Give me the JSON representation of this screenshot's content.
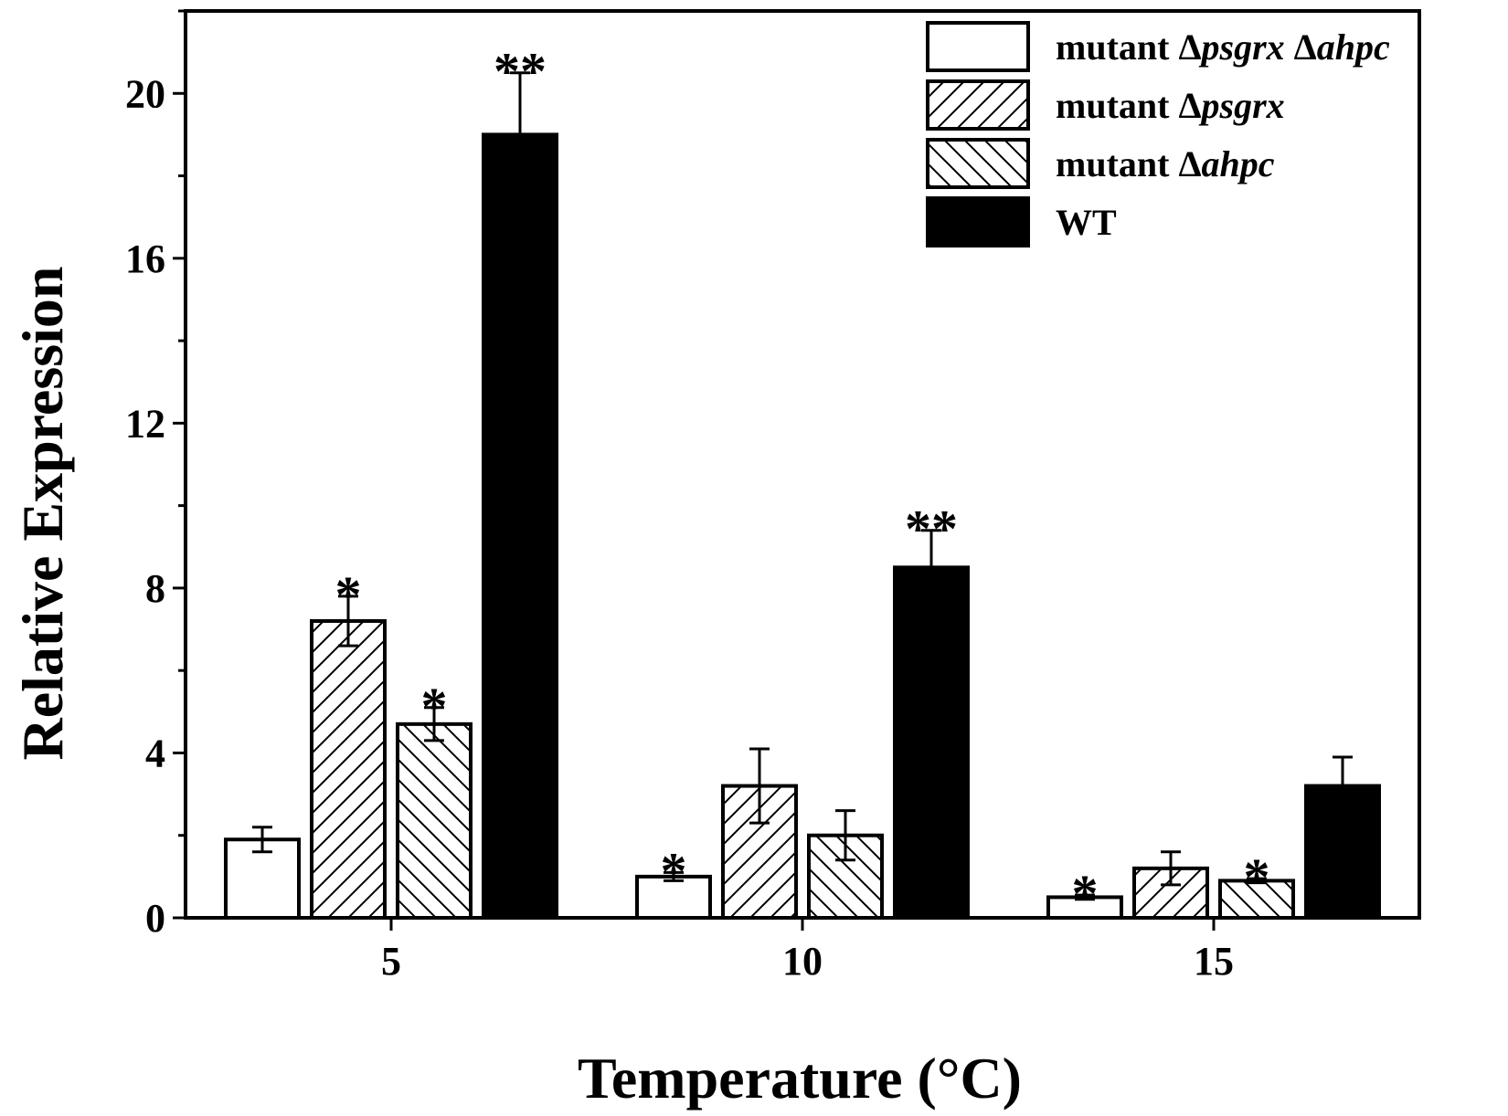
{
  "chart_data": {
    "type": "bar",
    "title": "",
    "xlabel": "Temperature (°C)",
    "ylabel": "Relative Expression",
    "ylim": [
      0,
      22
    ],
    "yticks": [
      0,
      4,
      8,
      12,
      16,
      20
    ],
    "categories": [
      "5",
      "10",
      "15"
    ],
    "legend_position": "top-right",
    "series": [
      {
        "name": "mutant Δpsgrx Δahpc",
        "legend_parts": [
          {
            "text": "mutant Δ",
            "italic": false
          },
          {
            "text": "psgrx",
            "italic": true
          },
          {
            "text": " Δ",
            "italic": false
          },
          {
            "text": "ahpc",
            "italic": true
          }
        ],
        "fill": "open",
        "values": [
          1.9,
          1.0,
          0.5
        ],
        "errors": [
          0.3,
          0.1,
          0.05
        ],
        "sig": [
          "",
          "*",
          "*"
        ]
      },
      {
        "name": "mutant Δpsgrx",
        "legend_parts": [
          {
            "text": "mutant Δ",
            "italic": false
          },
          {
            "text": "psgrx",
            "italic": true
          }
        ],
        "fill": "hatch-forward",
        "values": [
          7.2,
          3.2,
          1.2
        ],
        "errors": [
          0.6,
          0.9,
          0.4
        ],
        "sig": [
          "*",
          "",
          ""
        ]
      },
      {
        "name": "mutant Δahpc",
        "legend_parts": [
          {
            "text": "mutant Δ",
            "italic": false
          },
          {
            "text": "ahpc",
            "italic": true
          }
        ],
        "fill": "hatch-back",
        "values": [
          4.7,
          2.0,
          0.9
        ],
        "errors": [
          0.4,
          0.6,
          0.05
        ],
        "sig": [
          "*",
          "",
          "*"
        ]
      },
      {
        "name": "WT",
        "legend_parts": [
          {
            "text": "WT",
            "italic": false
          }
        ],
        "fill": "solid",
        "values": [
          19.0,
          8.5,
          3.2
        ],
        "errors": [
          1.5,
          0.9,
          0.7
        ],
        "sig": [
          "**",
          "**",
          ""
        ]
      }
    ],
    "colors": {
      "stroke": "#000000",
      "solid": "#000000",
      "background": "#ffffff"
    }
  }
}
